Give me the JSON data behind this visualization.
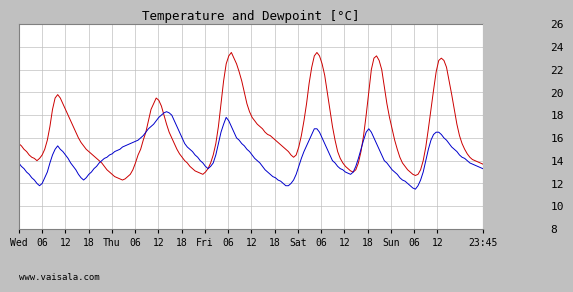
{
  "title": "Temperature and Dewpoint [°C]",
  "ylim": [
    8,
    26
  ],
  "yticks": [
    8,
    10,
    12,
    14,
    16,
    18,
    20,
    22,
    24,
    26
  ],
  "temp_color": "#cc0000",
  "dew_color": "#0000cc",
  "watermark": "www.vaisala.com",
  "x_tick_labels": [
    "Wed",
    "06",
    "12",
    "18",
    "Thu",
    "06",
    "12",
    "18",
    "Fri",
    "06",
    "12",
    "18",
    "Sat",
    "06",
    "12",
    "18",
    "Sun",
    "06",
    "12",
    "23:45"
  ],
  "x_tick_positions": [
    0,
    6,
    12,
    18,
    24,
    30,
    36,
    42,
    48,
    54,
    60,
    66,
    72,
    78,
    84,
    90,
    96,
    102,
    108,
    119.75
  ],
  "x_total_hours": 119.75,
  "temp_data": [
    15.5,
    15.3,
    15.0,
    14.8,
    14.5,
    14.3,
    14.2,
    14.0,
    14.2,
    14.5,
    15.0,
    15.8,
    17.0,
    18.5,
    19.5,
    19.8,
    19.5,
    19.0,
    18.5,
    18.0,
    17.5,
    17.0,
    16.5,
    16.0,
    15.6,
    15.3,
    15.0,
    14.8,
    14.6,
    14.4,
    14.2,
    14.0,
    13.8,
    13.5,
    13.2,
    13.0,
    12.8,
    12.6,
    12.5,
    12.4,
    12.3,
    12.4,
    12.6,
    12.8,
    13.2,
    13.8,
    14.5,
    15.0,
    15.8,
    16.5,
    17.5,
    18.5,
    19.0,
    19.5,
    19.3,
    18.8,
    18.0,
    17.2,
    16.5,
    16.0,
    15.5,
    15.0,
    14.6,
    14.3,
    14.0,
    13.8,
    13.5,
    13.3,
    13.1,
    13.0,
    12.9,
    12.8,
    13.0,
    13.3,
    13.8,
    14.5,
    15.5,
    17.0,
    19.0,
    21.0,
    22.5,
    23.2,
    23.5,
    23.0,
    22.5,
    21.8,
    21.0,
    20.0,
    19.0,
    18.3,
    17.8,
    17.5,
    17.2,
    17.0,
    16.8,
    16.5,
    16.3,
    16.2,
    16.0,
    15.8,
    15.6,
    15.4,
    15.2,
    15.0,
    14.8,
    14.5,
    14.3,
    14.5,
    15.2,
    16.2,
    17.5,
    19.0,
    20.8,
    22.2,
    23.2,
    23.5,
    23.2,
    22.5,
    21.5,
    20.0,
    18.5,
    17.0,
    15.8,
    14.8,
    14.2,
    13.8,
    13.5,
    13.3,
    13.1,
    13.0,
    13.2,
    13.8,
    14.8,
    16.2,
    18.0,
    20.0,
    22.0,
    23.0,
    23.2,
    22.8,
    22.0,
    20.5,
    19.0,
    17.8,
    16.8,
    15.8,
    15.0,
    14.3,
    13.8,
    13.5,
    13.2,
    13.0,
    12.8,
    12.7,
    12.8,
    13.2,
    14.0,
    15.2,
    16.8,
    18.5,
    20.2,
    21.8,
    22.8,
    23.0,
    22.8,
    22.2,
    21.0,
    19.8,
    18.5,
    17.2,
    16.2,
    15.5,
    15.0,
    14.6,
    14.3,
    14.1,
    14.0,
    13.9,
    13.8,
    13.7
  ],
  "dew_data": [
    13.8,
    13.5,
    13.3,
    13.0,
    12.8,
    12.5,
    12.3,
    12.0,
    11.8,
    12.0,
    12.5,
    13.0,
    13.8,
    14.5,
    15.0,
    15.3,
    15.0,
    14.8,
    14.5,
    14.2,
    13.8,
    13.5,
    13.2,
    12.8,
    12.5,
    12.3,
    12.5,
    12.8,
    13.0,
    13.3,
    13.5,
    13.8,
    14.0,
    14.2,
    14.3,
    14.5,
    14.6,
    14.8,
    14.9,
    15.0,
    15.2,
    15.3,
    15.4,
    15.5,
    15.6,
    15.7,
    15.8,
    16.0,
    16.2,
    16.5,
    16.8,
    17.0,
    17.2,
    17.5,
    17.8,
    18.0,
    18.2,
    18.3,
    18.2,
    18.0,
    17.5,
    17.0,
    16.5,
    16.0,
    15.5,
    15.2,
    15.0,
    14.8,
    14.5,
    14.3,
    14.0,
    13.8,
    13.5,
    13.3,
    13.5,
    13.8,
    14.5,
    15.5,
    16.5,
    17.2,
    17.8,
    17.5,
    17.0,
    16.5,
    16.0,
    15.8,
    15.5,
    15.3,
    15.0,
    14.8,
    14.5,
    14.2,
    14.0,
    13.8,
    13.5,
    13.2,
    13.0,
    12.8,
    12.6,
    12.5,
    12.3,
    12.2,
    12.0,
    11.8,
    11.8,
    12.0,
    12.3,
    12.8,
    13.5,
    14.2,
    14.8,
    15.3,
    15.8,
    16.3,
    16.8,
    16.8,
    16.5,
    16.0,
    15.5,
    15.0,
    14.5,
    14.0,
    13.8,
    13.5,
    13.3,
    13.2,
    13.0,
    12.9,
    12.8,
    13.0,
    13.5,
    14.2,
    15.0,
    15.8,
    16.5,
    16.8,
    16.5,
    16.0,
    15.5,
    15.0,
    14.5,
    14.0,
    13.8,
    13.5,
    13.2,
    13.0,
    12.8,
    12.5,
    12.3,
    12.2,
    12.0,
    11.8,
    11.6,
    11.5,
    11.8,
    12.3,
    13.0,
    14.0,
    15.0,
    15.8,
    16.3,
    16.5,
    16.5,
    16.3,
    16.0,
    15.8,
    15.5,
    15.2,
    15.0,
    14.8,
    14.5,
    14.3,
    14.2,
    14.0,
    13.8,
    13.7,
    13.6,
    13.5,
    13.4,
    13.3
  ]
}
